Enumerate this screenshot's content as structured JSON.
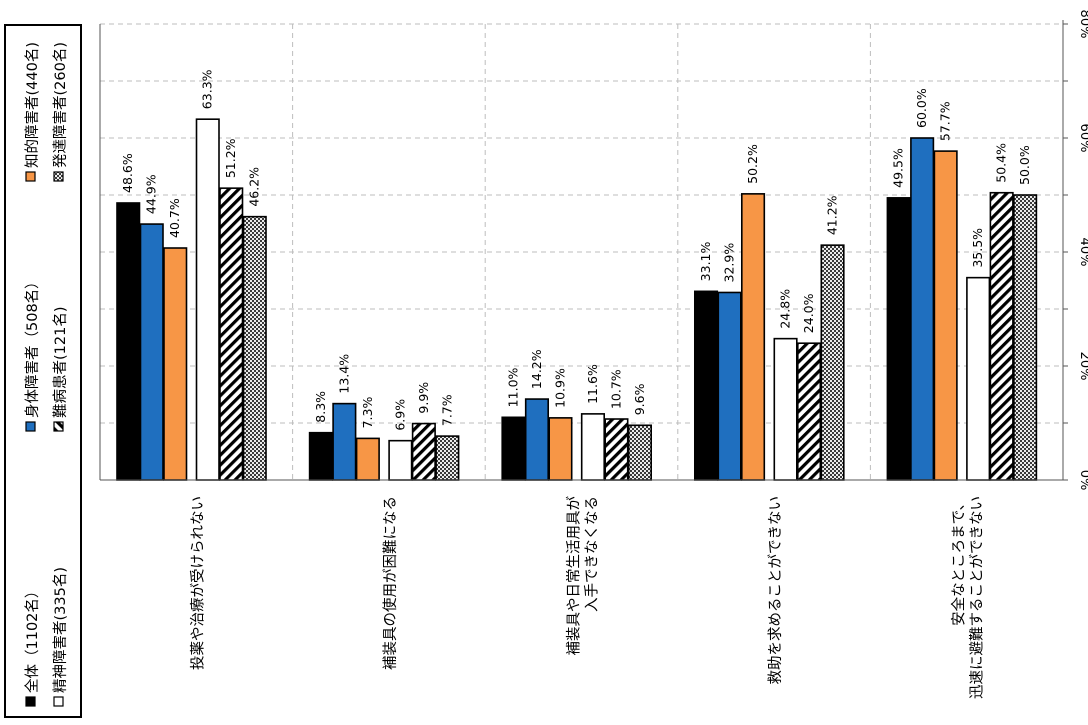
{
  "chart_data": {
    "type": "bar",
    "orientation": "rotated-90-clockwise",
    "categories": [
      [
        "投薬や治療が受けられない"
      ],
      [
        "補装具の使用が困難になる"
      ],
      [
        "補装具や日常生活用具が",
        "入手できなくなる"
      ],
      [
        "救助を求めることができない"
      ],
      [
        "安全なところまで、",
        "迅速に避難することができない"
      ]
    ],
    "series": [
      {
        "name": "全体（1102名）",
        "pattern": "solid",
        "color": "#000000",
        "values": [
          48.6,
          8.3,
          11.0,
          33.1,
          49.5
        ]
      },
      {
        "name": "身体障害者（508名）",
        "pattern": "solid",
        "color": "#1F6FBF",
        "values": [
          44.9,
          13.4,
          14.2,
          32.9,
          60.0
        ]
      },
      {
        "name": "知的障害者(440名)",
        "pattern": "solid",
        "color": "#F79646",
        "values": [
          40.7,
          7.3,
          10.9,
          50.2,
          57.7
        ]
      },
      {
        "name": "精神障害者(335名)",
        "pattern": "solid",
        "color": "#FFFFFF",
        "values": [
          63.3,
          6.9,
          11.6,
          24.8,
          35.5
        ]
      },
      {
        "name": "難病患者(121名)",
        "pattern": "hatch",
        "color": "#000000",
        "values": [
          51.2,
          9.9,
          10.7,
          24.0,
          50.4
        ]
      },
      {
        "name": "発達障害者(260名)",
        "pattern": "dots",
        "color": "#555555",
        "values": [
          46.2,
          7.7,
          9.6,
          41.2,
          50.0
        ]
      }
    ],
    "value_axis": {
      "min": 0,
      "max": 80,
      "step": 20,
      "ticks": [
        "0%",
        "20%",
        "40%",
        "60%",
        "80%"
      ],
      "unit": "%"
    },
    "grid": true,
    "legend_position": "left"
  }
}
